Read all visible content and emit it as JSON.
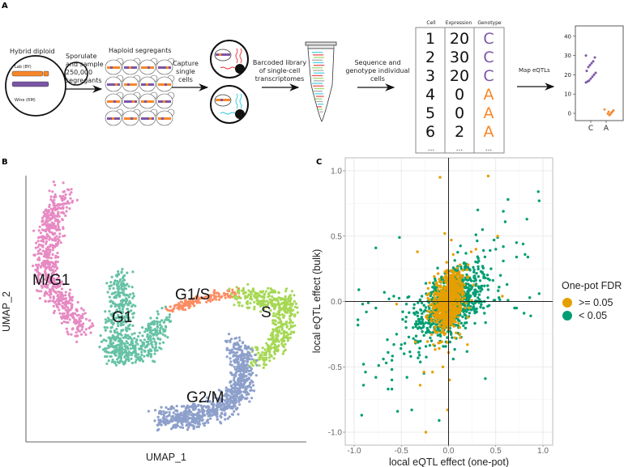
{
  "panel_a": {
    "label": "A",
    "hybrid_title": "Hybrid diploid",
    "lab_label": "Lab (BY)",
    "wine_label": "Wine (RM)",
    "step1": [
      "Sporulate",
      "and sample",
      "250,000",
      "segregants"
    ],
    "haploid_title": "Haploid segregants",
    "step2": [
      "Capture",
      "single",
      "cells"
    ],
    "step3": [
      "Barcoded library",
      "of single-cell",
      "transcriptomes"
    ],
    "step4": [
      "Sequence and",
      "genotype individual",
      "cells"
    ],
    "table": {
      "headers": [
        "Cell",
        "Expression",
        "Genotype"
      ],
      "rows": [
        [
          "1",
          "20",
          "C"
        ],
        [
          "2",
          "30",
          "C"
        ],
        [
          "3",
          "20",
          "C"
        ],
        [
          "4",
          "0",
          "A"
        ],
        [
          "5",
          "0",
          "A"
        ],
        [
          "6",
          "2",
          "A"
        ]
      ],
      "ellipsis": "..."
    },
    "step5": "Map eQTLs",
    "mini_plot": {
      "y_ticks": [
        "40",
        "30",
        "20",
        "10",
        "0"
      ],
      "categories": [
        "C",
        "A"
      ],
      "C_values": [
        30,
        29,
        27,
        26,
        25,
        24,
        22,
        21,
        20,
        19,
        18,
        17,
        16.5,
        16
      ],
      "A_values": [
        2,
        1.5,
        1,
        0.5,
        0,
        -0.5,
        -1,
        0.8,
        -0.2
      ],
      "colors": {
        "C": "#7b56a6",
        "A": "#f7862a"
      }
    }
  },
  "chart_data": [
    {
      "type": "scatter",
      "panel": "B",
      "xlabel": "UMAP_1",
      "ylabel": "UMAP_2",
      "xlim": [
        0,
        10
      ],
      "ylim": [
        0,
        10
      ],
      "clusters": [
        {
          "name": "M/G1",
          "color": "#e78ac3",
          "n": 650,
          "spread": 0.55,
          "path": [
            [
              1.39,
              9.36
            ],
            [
              0.9,
              8.33
            ],
            [
              0.72,
              7.11
            ],
            [
              0.81,
              6.11
            ],
            [
              1.39,
              5.11
            ],
            [
              2.05,
              4.2
            ]
          ]
        },
        {
          "name": "G1",
          "color": "#66c2a5",
          "n": 600,
          "spread": 0.6,
          "path": [
            [
              3.35,
              6.2
            ],
            [
              3.41,
              4.8
            ],
            [
              3.13,
              3.3
            ],
            [
              4.13,
              3.4
            ],
            [
              4.86,
              4.6
            ]
          ]
        },
        {
          "name": "G1/S",
          "color": "#fc8d62",
          "n": 130,
          "spread": 0.22,
          "path": [
            [
              5.06,
              4.95
            ],
            [
              6.3,
              5.4
            ],
            [
              7.54,
              5.6
            ]
          ]
        },
        {
          "name": "S",
          "color": "#a6d854",
          "n": 450,
          "spread": 0.5,
          "path": [
            [
              7.54,
              5.5
            ],
            [
              9.28,
              5.29
            ],
            [
              9.1,
              3.9
            ],
            [
              8.32,
              3.07
            ]
          ]
        },
        {
          "name": "G2/M",
          "color": "#8da0cb",
          "n": 800,
          "spread": 0.55,
          "path": [
            [
              4.77,
              0.85
            ],
            [
              5.81,
              0.94
            ],
            [
              6.97,
              1.25
            ],
            [
              7.75,
              2.07
            ],
            [
              7.75,
              3.07
            ],
            [
              7.46,
              3.68
            ]
          ]
        }
      ]
    },
    {
      "type": "scatter",
      "panel": "C",
      "xlabel": "local eQTL effect (one-pot)",
      "ylabel": "local eQTL effect (bulk)",
      "xlim": [
        -1.1,
        1.1
      ],
      "ylim": [
        -1.1,
        1.1
      ],
      "x_ticks": [
        "-1.0",
        "-0.5",
        "0.0",
        "0.5",
        "1.0"
      ],
      "y_ticks": [
        "1.0",
        "0.5",
        "0.0",
        "-0.5",
        "-1.0"
      ],
      "grid": true,
      "legend": {
        "title": "One-pot FDR",
        "placement": "right"
      },
      "series": [
        {
          "name": ">= 0.05",
          "color": "#e69f00",
          "core": {
            "center": [
              0,
              0
            ],
            "sd": [
              0.08,
              0.11
            ],
            "corr": 0.3,
            "n": 700
          },
          "points": [
            [
              -0.09,
              0.95
            ],
            [
              0.42,
              0.96
            ],
            [
              -0.04,
              0.52
            ],
            [
              -0.33,
              0.38
            ],
            [
              0.03,
              0.47
            ],
            [
              0.52,
              0.5
            ],
            [
              0.29,
              0.4
            ],
            [
              -0.3,
              -0.64
            ],
            [
              -0.26,
              -0.54
            ],
            [
              -0.17,
              -0.54
            ],
            [
              -0.06,
              -0.5
            ],
            [
              0.01,
              -0.6
            ],
            [
              -0.01,
              -0.83
            ],
            [
              -0.24,
              -1.0
            ],
            [
              0.2,
              -0.33
            ],
            [
              0,
              -0.39
            ],
            [
              -0.35,
              -0.31
            ],
            [
              0.57,
              0.04
            ],
            [
              -0.55,
              -0.02
            ],
            [
              0.24,
              0.38
            ],
            [
              0.05,
              0.36
            ],
            [
              -0.02,
              0.3
            ],
            [
              0.12,
              -0.25
            ],
            [
              0.08,
              -0.24
            ],
            [
              -0.1,
              -0.36
            ]
          ]
        },
        {
          "name": "< 0.05",
          "color": "#009e73",
          "core": {
            "center": [
              0.02,
              -0.01
            ],
            "sd": [
              0.19,
              0.14
            ],
            "corr": 0.5,
            "n": 800
          },
          "points": [
            [
              0.95,
              0.84
            ],
            [
              0.96,
              0.77
            ],
            [
              0.63,
              0.78
            ],
            [
              0.31,
              0.7
            ],
            [
              0.58,
              0.69
            ],
            [
              0.6,
              0.61
            ],
            [
              0.83,
              0.63
            ],
            [
              0.36,
              0.55
            ],
            [
              0.29,
              0.51
            ],
            [
              0.52,
              0.49
            ],
            [
              -0.52,
              0.49
            ],
            [
              -0.77,
              0.41
            ],
            [
              0.72,
              0.45
            ],
            [
              0.79,
              0.44
            ],
            [
              0.58,
              0.42
            ],
            [
              0.81,
              0.36
            ],
            [
              0.84,
              0.34
            ],
            [
              0.72,
              0.34
            ],
            [
              0.58,
              0.31
            ],
            [
              -0.95,
              0.09
            ],
            [
              0.96,
              0.06
            ],
            [
              0.86,
              0.03
            ],
            [
              0.87,
              -0.11
            ],
            [
              0.8,
              -0.09
            ],
            [
              0.72,
              -0.05
            ],
            [
              -0.96,
              -0.14
            ],
            [
              -0.96,
              -0.18
            ],
            [
              -0.87,
              -0.08
            ],
            [
              -0.91,
              -0.02
            ],
            [
              -0.77,
              -0.05
            ],
            [
              -0.85,
              -0.01
            ],
            [
              -0.9,
              -0.48
            ],
            [
              -0.88,
              -0.54
            ],
            [
              -0.9,
              -0.64
            ],
            [
              -0.92,
              -0.87
            ],
            [
              -0.77,
              -0.58
            ],
            [
              -0.74,
              -0.49
            ],
            [
              -0.64,
              -0.39
            ],
            [
              -0.66,
              -0.47
            ],
            [
              -0.69,
              -0.44
            ],
            [
              -0.6,
              -0.45
            ],
            [
              -0.6,
              -0.52
            ],
            [
              -0.6,
              -0.6
            ],
            [
              -0.64,
              -0.67
            ],
            [
              -0.6,
              -0.67
            ],
            [
              -0.54,
              -0.84
            ],
            [
              -0.39,
              -0.83
            ],
            [
              -0.44,
              -0.58
            ],
            [
              -0.1,
              -0.91
            ],
            [
              0.39,
              -0.59
            ],
            [
              0.05,
              -0.44
            ],
            [
              -0.26,
              -0.55
            ],
            [
              -0.4,
              -0.42
            ],
            [
              -0.47,
              -0.4
            ],
            [
              -0.5,
              -0.33
            ],
            [
              -0.68,
              0.07
            ],
            [
              -0.63,
              0.02
            ],
            [
              0.37,
              0.39
            ],
            [
              0.44,
              0.39
            ],
            [
              0.5,
              0.4
            ],
            [
              0.38,
              0.0
            ],
            [
              0.49,
              0.01
            ],
            [
              0.63,
              0.01
            ],
            [
              0.7,
              -0.05
            ],
            [
              0.37,
              -0.05
            ],
            [
              0.38,
              -0.09
            ],
            [
              0.45,
              0.25
            ],
            [
              0.55,
              0.2
            ],
            [
              0.62,
              0.13
            ],
            [
              -0.55,
              -0.25
            ],
            [
              -0.45,
              -0.2
            ],
            [
              -0.35,
              -0.3
            ],
            [
              -0.58,
              0.04
            ]
          ]
        }
      ]
    }
  ],
  "panel_b": {
    "label": "B"
  },
  "panel_c": {
    "label": "C"
  }
}
